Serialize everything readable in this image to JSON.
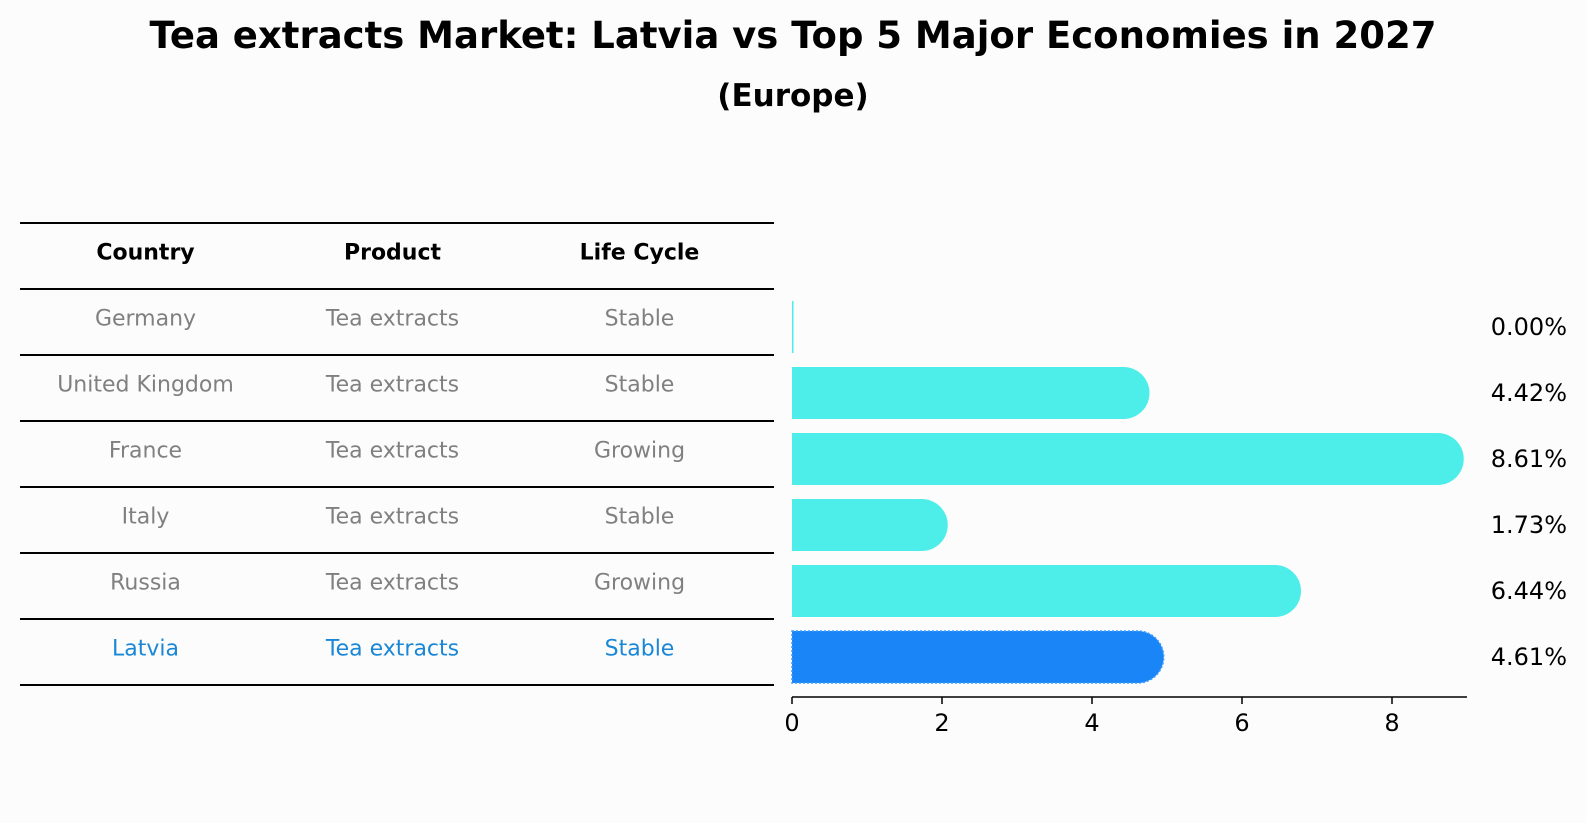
{
  "title": "Tea extracts Market: Latvia vs Top 5 Major Economies in 2027",
  "subtitle": "(Europe)",
  "table": {
    "headers": [
      "Country",
      "Product",
      "Life Cycle"
    ],
    "rows": [
      {
        "country": "Germany",
        "product": "Tea extracts",
        "life_cycle": "Stable",
        "highlight": false
      },
      {
        "country": "United Kingdom",
        "product": "Tea extracts",
        "life_cycle": "Stable",
        "highlight": false
      },
      {
        "country": "France",
        "product": "Tea extracts",
        "life_cycle": "Growing",
        "highlight": false
      },
      {
        "country": "Italy",
        "product": "Tea extracts",
        "life_cycle": "Stable",
        "highlight": false
      },
      {
        "country": "Russia",
        "product": "Tea extracts",
        "life_cycle": "Growing",
        "highlight": false
      },
      {
        "country": "Latvia",
        "product": "Tea extracts",
        "life_cycle": "Stable",
        "highlight": true
      }
    ]
  },
  "colors": {
    "bar": "#4deeea",
    "highlight_bar": "#1a85f7",
    "muted_text": "#808080",
    "highlight_text": "#1a87d6"
  },
  "chart_data": {
    "type": "bar",
    "orientation": "horizontal",
    "categories": [
      "Germany",
      "United Kingdom",
      "France",
      "Italy",
      "Russia",
      "Latvia"
    ],
    "values": [
      0.0,
      4.42,
      8.61,
      1.73,
      6.44,
      4.61
    ],
    "value_labels": [
      "0.00%",
      "4.42%",
      "8.61%",
      "1.73%",
      "6.44%",
      "4.61%"
    ],
    "highlight_category": "Latvia",
    "xlim": [
      0,
      9
    ],
    "xticks": [
      0,
      2,
      4,
      6,
      8
    ],
    "xtick_labels": [
      "0",
      "2",
      "4",
      "6",
      "8"
    ],
    "grid": false
  }
}
